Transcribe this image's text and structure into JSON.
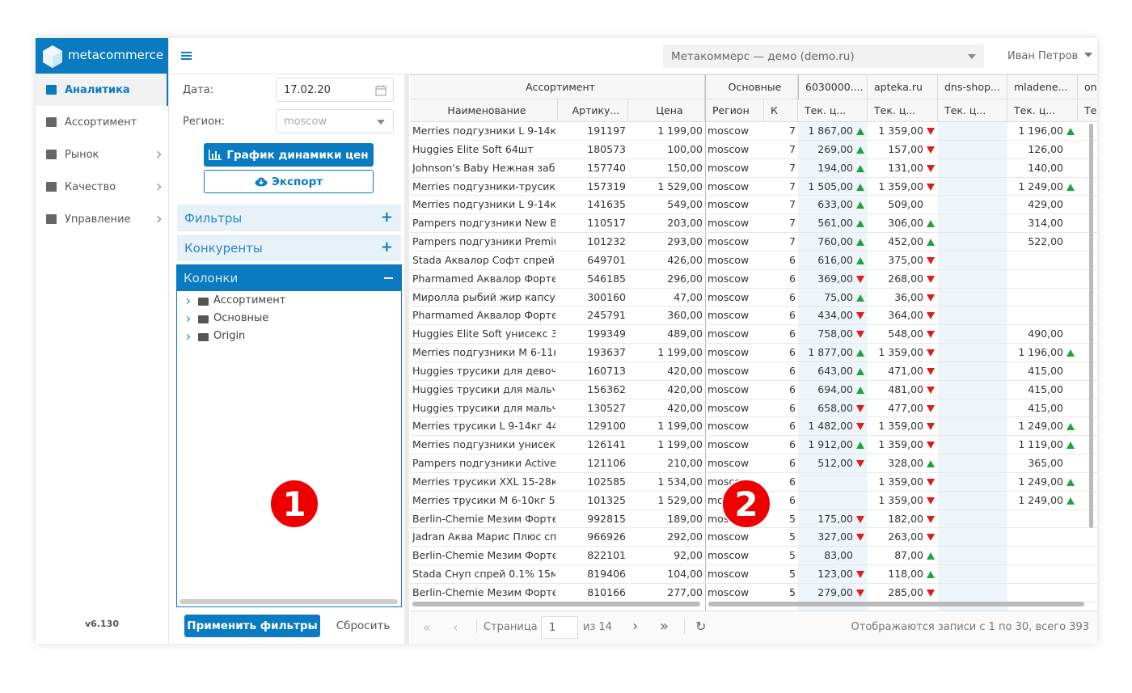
{
  "sidebar": {
    "logo": "metacommerce",
    "nav": [
      "Аналитика",
      "Ассортимент",
      "Рынок",
      "Качество",
      "Управление"
    ],
    "version": "v6.130"
  },
  "topbar": {
    "project": "Метакоммерс — демо (demo.ru)",
    "user": "Иван Петров"
  },
  "filters": {
    "date_label": "Дата:",
    "date": "17.02.20",
    "region_label": "Регион:",
    "region": "moscow",
    "chart_button": "График динамики цен",
    "export_button": "Экспорт",
    "sections": [
      "Фильтры",
      "Конкуренты",
      "Колонки"
    ],
    "tree": [
      "Ассортимент",
      "Основные",
      "Origin"
    ],
    "apply": "Применить фильтры",
    "reset": "Сбросить"
  },
  "badges": [
    "1",
    "2"
  ],
  "table": {
    "groups": [
      "Ассортимент",
      "Основные",
      "6030000....",
      "apteka.ru",
      "dns-shop...",
      "mladene...",
      "on"
    ],
    "columns": [
      "Наименование",
      "Артику...",
      "Цена",
      "Регион",
      "К",
      "Тек. ц...",
      "Тек. ц...",
      "Тек. ц...",
      "Тек. ц...",
      "Те"
    ],
    "rows": [
      {
        "name": "Merries подгузники L 9-14кг ...",
        "sku": "191197",
        "price": "1 199,00",
        "region": "moscow",
        "k": 7,
        "cells": [
          {
            "v": "1 867,00",
            "trend": "up"
          },
          {
            "v": "1 359,00",
            "trend": "down"
          },
          null,
          {
            "v": "1 196,00",
            "trend": "up"
          }
        ]
      },
      {
        "name": "Huggies Elite Soft 64шт",
        "sku": "180573",
        "price": "100,00",
        "region": "moscow",
        "k": 7,
        "cells": [
          {
            "v": "269,00",
            "trend": "up"
          },
          {
            "v": "157,00",
            "trend": "down"
          },
          null,
          {
            "v": "126,00"
          }
        ]
      },
      {
        "name": "Johnson's Baby Нежная забо...",
        "sku": "157740",
        "price": "150,00",
        "region": "moscow",
        "k": 7,
        "cells": [
          {
            "v": "194,00",
            "trend": "up"
          },
          {
            "v": "131,00",
            "trend": "down"
          },
          null,
          {
            "v": "140,00"
          }
        ]
      },
      {
        "name": "Merries подгузники-трусики ...",
        "sku": "157319",
        "price": "1 529,00",
        "region": "moscow",
        "k": 7,
        "cells": [
          {
            "v": "1 505,00",
            "trend": "up"
          },
          {
            "v": "1 359,00",
            "trend": "down"
          },
          null,
          {
            "v": "1 249,00",
            "trend": "up"
          }
        ]
      },
      {
        "name": "Merries подгузники L 9-14кг ...",
        "sku": "141635",
        "price": "549,00",
        "region": "moscow",
        "k": 7,
        "cells": [
          {
            "v": "633,00",
            "trend": "up"
          },
          {
            "v": "509,00"
          },
          null,
          {
            "v": "429,00"
          }
        ]
      },
      {
        "name": "Pampers подгузники New Ba...",
        "sku": "110517",
        "price": "203,00",
        "region": "moscow",
        "k": 7,
        "cells": [
          {
            "v": "561,00",
            "trend": "up"
          },
          {
            "v": "306,00",
            "trend": "up"
          },
          null,
          {
            "v": "314,00"
          }
        ]
      },
      {
        "name": "Pampers подгузники Premiu...",
        "sku": "101232",
        "price": "293,00",
        "region": "moscow",
        "k": 7,
        "cells": [
          {
            "v": "760,00",
            "trend": "up"
          },
          {
            "v": "452,00",
            "trend": "up"
          },
          null,
          {
            "v": "522,00"
          }
        ]
      },
      {
        "name": "Stada Аквалор Софт спрей 1...",
        "sku": "649701",
        "price": "426,00",
        "region": "moscow",
        "k": 6,
        "cells": [
          {
            "v": "616,00",
            "trend": "up"
          },
          {
            "v": "375,00",
            "trend": "down"
          },
          null,
          null
        ]
      },
      {
        "name": "Pharmamed Аквалор Форте ...",
        "sku": "546185",
        "price": "296,00",
        "region": "moscow",
        "k": 6,
        "cells": [
          {
            "v": "369,00",
            "trend": "down"
          },
          {
            "v": "268,00",
            "trend": "down"
          },
          null,
          null
        ]
      },
      {
        "name": "Миролла рыбий жир капсул...",
        "sku": "300160",
        "price": "47,00",
        "region": "moscow",
        "k": 6,
        "cells": [
          {
            "v": "75,00",
            "trend": "up"
          },
          {
            "v": "36,00",
            "trend": "down"
          },
          null,
          null
        ]
      },
      {
        "name": "Pharmamed Аквалор Форте ...",
        "sku": "245791",
        "price": "360,00",
        "region": "moscow",
        "k": 6,
        "cells": [
          {
            "v": "434,00",
            "trend": "down"
          },
          {
            "v": "364,00",
            "trend": "down"
          },
          null,
          null
        ]
      },
      {
        "name": "Huggies Elite Soft унисекс 3 ...",
        "sku": "199349",
        "price": "489,00",
        "region": "moscow",
        "k": 6,
        "cells": [
          {
            "v": "758,00",
            "trend": "down"
          },
          {
            "v": "548,00",
            "trend": "down"
          },
          null,
          {
            "v": "490,00"
          }
        ]
      },
      {
        "name": "Merries подгузники M 6-11к...",
        "sku": "193637",
        "price": "1 199,00",
        "region": "moscow",
        "k": 6,
        "cells": [
          {
            "v": "1 877,00",
            "trend": "up"
          },
          {
            "v": "1 359,00",
            "trend": "down"
          },
          null,
          {
            "v": "1 196,00",
            "trend": "up"
          }
        ]
      },
      {
        "name": "Huggies трусики для девоче...",
        "sku": "160713",
        "price": "420,00",
        "region": "moscow",
        "k": 6,
        "cells": [
          {
            "v": "643,00",
            "trend": "up"
          },
          {
            "v": "471,00",
            "trend": "down"
          },
          null,
          {
            "v": "415,00"
          }
        ]
      },
      {
        "name": "Huggies трусики для мальчи...",
        "sku": "156362",
        "price": "420,00",
        "region": "moscow",
        "k": 6,
        "cells": [
          {
            "v": "694,00",
            "trend": "up"
          },
          {
            "v": "481,00",
            "trend": "down"
          },
          null,
          {
            "v": "415,00"
          }
        ]
      },
      {
        "name": "Huggies трусики для мальчи...",
        "sku": "130527",
        "price": "420,00",
        "region": "moscow",
        "k": 6,
        "cells": [
          {
            "v": "658,00",
            "trend": "down"
          },
          {
            "v": "477,00",
            "trend": "down"
          },
          null,
          {
            "v": "415,00"
          }
        ]
      },
      {
        "name": "Merries трусики L 9-14кг 44шт",
        "sku": "129100",
        "price": "1 199,00",
        "region": "moscow",
        "k": 6,
        "cells": [
          {
            "v": "1 482,00",
            "trend": "down"
          },
          {
            "v": "1 359,00",
            "trend": "down"
          },
          null,
          {
            "v": "1 249,00",
            "trend": "up"
          }
        ]
      },
      {
        "name": "Merries подгузники унисекс ...",
        "sku": "126141",
        "price": "1 199,00",
        "region": "moscow",
        "k": 6,
        "cells": [
          {
            "v": "1 912,00",
            "trend": "up"
          },
          {
            "v": "1 359,00",
            "trend": "down"
          },
          null,
          {
            "v": "1 119,00",
            "trend": "up"
          }
        ]
      },
      {
        "name": "Pampers подгузники Active ...",
        "sku": "121106",
        "price": "210,00",
        "region": "moscow",
        "k": 6,
        "cells": [
          {
            "v": "512,00",
            "trend": "down"
          },
          {
            "v": "328,00",
            "trend": "up"
          },
          null,
          {
            "v": "365,00"
          }
        ]
      },
      {
        "name": "Merries трусики XXL 15-28кг ...",
        "sku": "102585",
        "price": "1 534,00",
        "region": "moscow",
        "k": 6,
        "cells": [
          null,
          {
            "v": "1 359,00",
            "trend": "down"
          },
          null,
          {
            "v": "1 249,00",
            "trend": "up"
          }
        ]
      },
      {
        "name": "Merries трусики M 6-10кг 58...",
        "sku": "101325",
        "price": "1 529,00",
        "region": "moscow",
        "k": 6,
        "cells": [
          null,
          {
            "v": "1 359,00",
            "trend": "down"
          },
          null,
          {
            "v": "1 249,00",
            "trend": "up"
          }
        ]
      },
      {
        "name": "Berlin-Chemie Мезим Форте ...",
        "sku": "992815",
        "price": "189,00",
        "region": "moscow",
        "k": 5,
        "cells": [
          {
            "v": "175,00",
            "trend": "down"
          },
          {
            "v": "182,00",
            "trend": "down"
          },
          null,
          null
        ]
      },
      {
        "name": "Jadran Аква Марис Плюс сп...",
        "sku": "966926",
        "price": "292,00",
        "region": "moscow",
        "k": 5,
        "cells": [
          {
            "v": "327,00",
            "trend": "down"
          },
          {
            "v": "263,00",
            "trend": "down"
          },
          null,
          null
        ]
      },
      {
        "name": "Berlin-Chemie Мезим Форте ...",
        "sku": "822101",
        "price": "92,00",
        "region": "moscow",
        "k": 5,
        "cells": [
          {
            "v": "83,00"
          },
          {
            "v": "87,00",
            "trend": "up"
          },
          null,
          null
        ]
      },
      {
        "name": "Stada Снуп спрей 0.1% 15мл",
        "sku": "819406",
        "price": "104,00",
        "region": "moscow",
        "k": 5,
        "cells": [
          {
            "v": "123,00",
            "trend": "down"
          },
          {
            "v": "118,00",
            "trend": "up"
          },
          null,
          null
        ]
      },
      {
        "name": "Berlin-Chemie Мезим Форте ...",
        "sku": "810166",
        "price": "277,00",
        "region": "moscow",
        "k": 5,
        "cells": [
          {
            "v": "279,00",
            "trend": "down"
          },
          {
            "v": "285,00",
            "trend": "down"
          },
          null,
          null
        ]
      }
    ]
  },
  "pager": {
    "page_label": "Страница",
    "page": "1",
    "of": "из 14",
    "summary": "Отображаются записи с 1 по 30, всего 393"
  }
}
